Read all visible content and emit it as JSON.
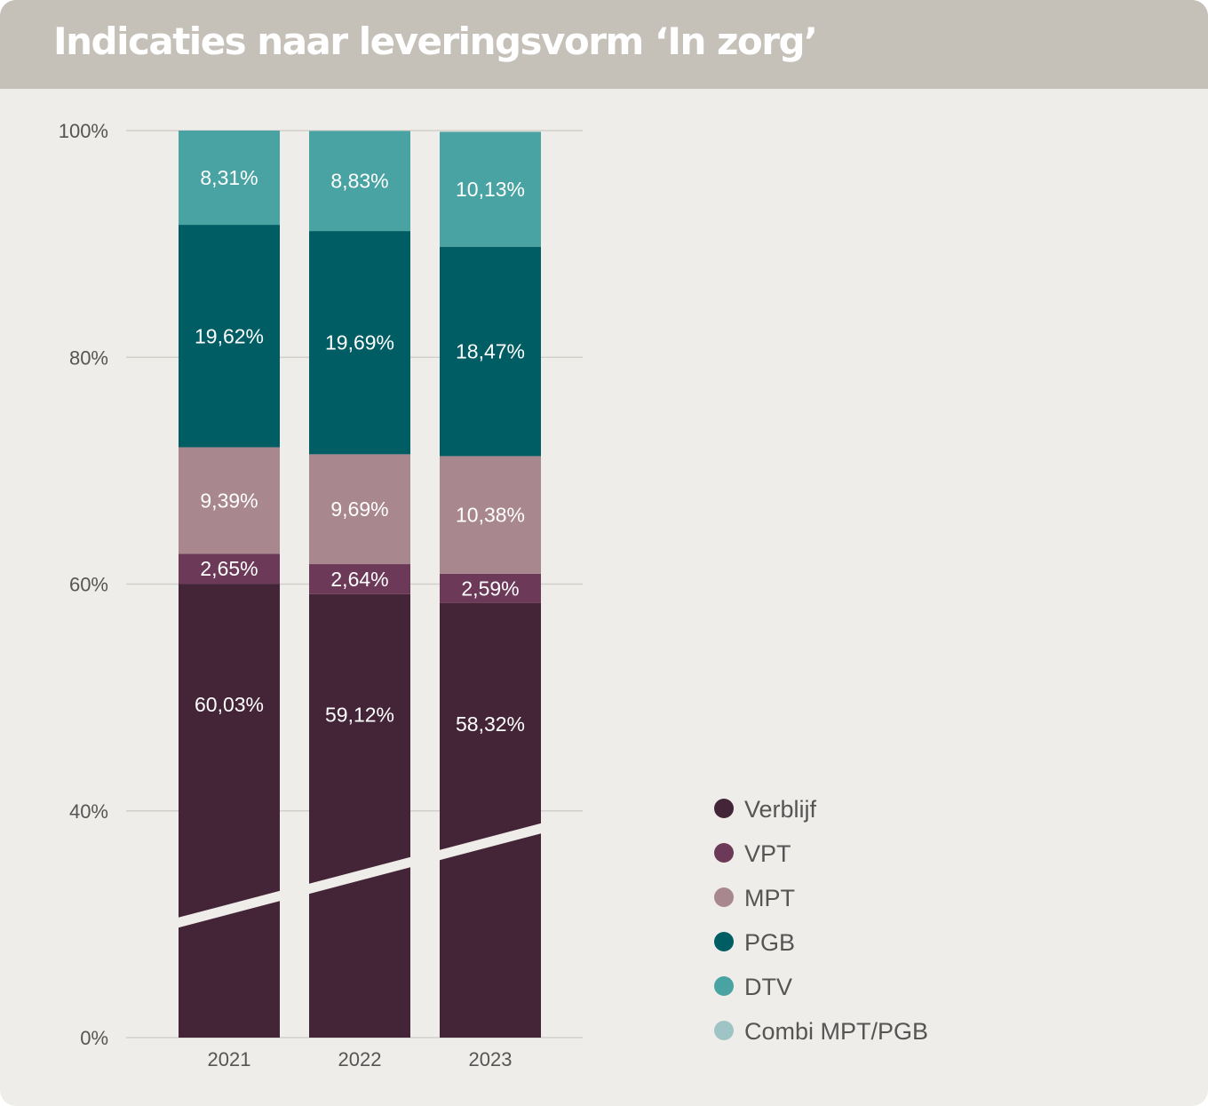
{
  "title": "Indicaties naar leveringsvorm ‘In zorg’",
  "chart_data": {
    "type": "bar",
    "stacked": true,
    "categories": [
      "2021",
      "2022",
      "2023"
    ],
    "ylim": [
      0,
      100
    ],
    "y_ticks": [
      "0%",
      "40%",
      "60%",
      "80%",
      "100%"
    ],
    "y_tick_values": [
      0,
      40,
      60,
      80,
      100
    ],
    "axis_break": true,
    "grid": true,
    "legend_position": "right",
    "series": [
      {
        "name": "Verblijf",
        "color": "#442538",
        "values": [
          60.03,
          59.12,
          58.32
        ],
        "labels": [
          "60,03%",
          "59,12%",
          "58,32%"
        ]
      },
      {
        "name": "VPT",
        "color": "#6c3a58",
        "values": [
          2.65,
          2.64,
          2.59
        ],
        "labels": [
          "2,65%",
          "2,64%",
          "2,59%"
        ]
      },
      {
        "name": "MPT",
        "color": "#a9878f",
        "values": [
          9.39,
          9.69,
          10.38
        ],
        "labels": [
          "9,39%",
          "9,69%",
          "10,38%"
        ]
      },
      {
        "name": "PGB",
        "color": "#005d63",
        "values": [
          19.62,
          19.69,
          18.47
        ],
        "labels": [
          "19,62%",
          "19,69%",
          "18,47%"
        ]
      },
      {
        "name": "DTV",
        "color": "#4aa3a3",
        "values": [
          8.31,
          8.83,
          10.13
        ],
        "labels": [
          "8,31%",
          "8,83%",
          "10,13%"
        ]
      },
      {
        "name": "Combi MPT/PGB",
        "color": "#9ec4c5",
        "values": [
          0,
          0,
          0
        ],
        "labels": []
      }
    ]
  }
}
